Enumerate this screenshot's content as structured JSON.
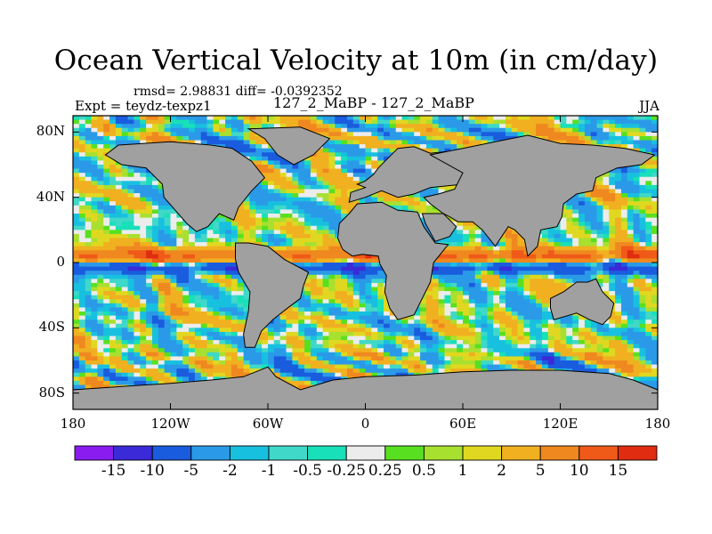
{
  "figure": {
    "title": "Ocean Vertical Velocity at 10m (in cm/day)",
    "stats": "rmsd= 2.98831 diff= -0.0392352",
    "left_label": "Expt = teydz-texpz1",
    "center_label": "127_2_MaBP - 127_2_MaBP",
    "right_label": "JJA"
  },
  "chart_data": {
    "type": "heatmap",
    "map_projection": "cylindrical equidistant",
    "variable": "Ocean vertical velocity difference at 10m",
    "units": "cm/day",
    "x_range": [
      -180,
      180
    ],
    "y_range": [
      -90,
      90
    ],
    "x_ticks": [
      {
        "value": -180,
        "label": "180"
      },
      {
        "value": -120,
        "label": "120W"
      },
      {
        "value": -60,
        "label": "60W"
      },
      {
        "value": 0,
        "label": "0"
      },
      {
        "value": 60,
        "label": "60E"
      },
      {
        "value": 120,
        "label": "120E"
      },
      {
        "value": 180,
        "label": "180"
      }
    ],
    "y_ticks": [
      {
        "value": 80,
        "label": "80N"
      },
      {
        "value": 40,
        "label": "40N"
      },
      {
        "value": 0,
        "label": "0"
      },
      {
        "value": -40,
        "label": "40S"
      },
      {
        "value": -80,
        "label": "80S"
      }
    ],
    "colorbar": {
      "labels": [
        "-15",
        "-10",
        "-5",
        "-2",
        "-1",
        "-0.5",
        "-0.25",
        "0.25",
        "0.5",
        "1",
        "2",
        "5",
        "10",
        "15"
      ],
      "colors": [
        "#8a1cf0",
        "#3a2ad8",
        "#1a5cde",
        "#2a9ae8",
        "#18c0e0",
        "#40d8c8",
        "#18e0b8",
        "#ececec",
        "#58e020",
        "#a8e030",
        "#e0d820",
        "#f0b020",
        "#f08820",
        "#f05a18",
        "#e02c10"
      ]
    },
    "land_color": "#a0a0a0",
    "seed": 1277
  }
}
